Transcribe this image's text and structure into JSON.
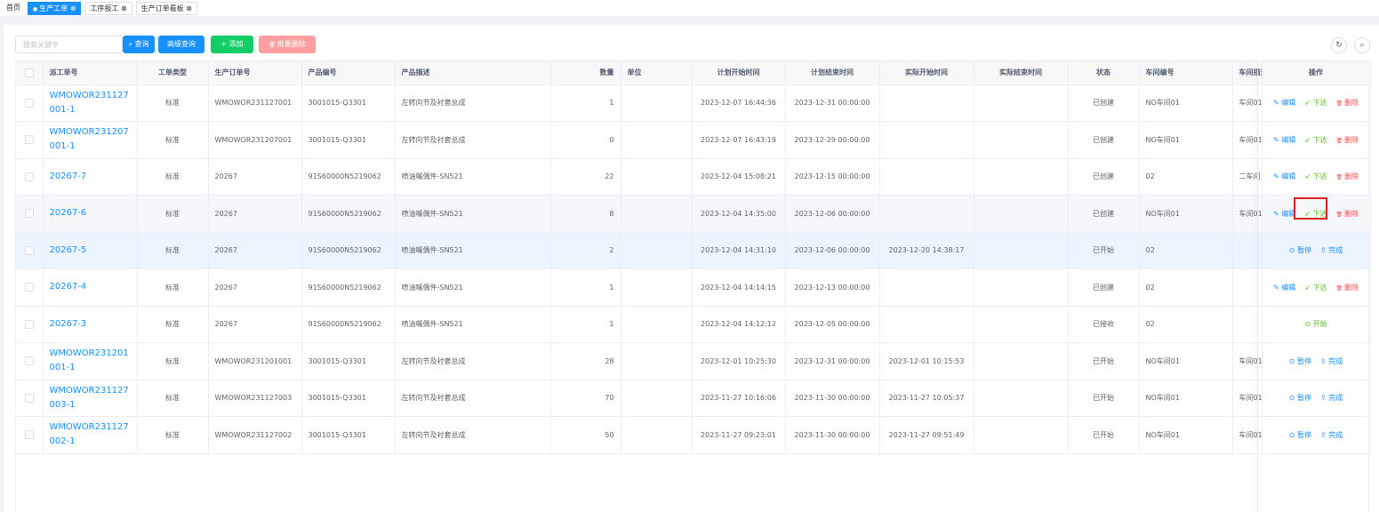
{
  "tabs": [
    {
      "label": "首页"
    },
    {
      "label": "生产工单"
    },
    {
      "label": "工序报工"
    },
    {
      "label": "生产订单看板"
    }
  ],
  "toolbar": {
    "search_placeholder": "搜索关键字",
    "buttons": [
      "查询",
      "高级查询",
      "添加",
      "批量删除"
    ]
  },
  "table": {
    "columns": [
      "派工单号",
      "工单类型",
      "生产订单号",
      "产品编号",
      "产品描述",
      "数量",
      "单位",
      "计划开始时间",
      "计划结束时间",
      "实际开始时间",
      "实际结束时间",
      "状态",
      "车间编号",
      "车间描述",
      "操作"
    ],
    "rows": [
      {
        "cells": [
          "WMOWOR231127001-1",
          "标准",
          "WMOWOR231127001",
          "3001015-Q3301",
          "左转向节及衬套总成",
          "1",
          null,
          "2023-12-07 16:44:36",
          "2023-12-31 00:00:00",
          null,
          null,
          "已创建",
          "NO车间01",
          "车间01"
        ],
        "actions": [
          "编辑",
          "下达",
          "删除"
        ]
      },
      {
        "cells": [
          "WMOWOR231207001-1",
          "标准",
          "WMOWOR231207001",
          "3001015-Q3301",
          "左转向节及衬套总成",
          "0",
          null,
          "2023-12-07 16:43:19",
          "2023-12-29 00:00:00",
          null,
          null,
          "已创建",
          "NO车间01",
          "车间01"
        ],
        "actions": [
          "编辑",
          "下达",
          "删除"
        ]
      },
      {
        "cells": [
          "20267-7",
          "标准",
          "20267",
          "91S60000N5219062",
          "喷油嘴偶件-SN521",
          "22",
          null,
          "2023-12-04 15:08:21",
          "2023-12-15 00:00:00",
          null,
          null,
          "已创建",
          "02",
          "二车间"
        ],
        "actions": [
          "编辑",
          "下达",
          "删除"
        ]
      },
      {
        "cells": [
          "20267-6",
          "标准",
          "20267",
          "91S60000N5219062",
          "喷油嘴偶件-SN521",
          "8",
          null,
          "2023-12-04 14:35:00",
          "2023-12-06 00:00:00",
          null,
          null,
          "已创建",
          "NO车间01",
          "车间01"
        ],
        "actions": [
          "编辑",
          "下达",
          "删除"
        ]
      },
      {
        "cells": [
          "20267-5",
          "标准",
          "20267",
          "91S60000N5219062",
          "喷油嘴偶件-SN521",
          "2",
          null,
          "2023-12-04 14:31:10",
          "2023-12-06 00:00:00",
          "2023-12-20 14:38:17",
          null,
          "已开始",
          "02",
          null
        ],
        "actions": [
          "暂停",
          "完成"
        ]
      },
      {
        "cells": [
          "20267-4",
          "标准",
          "20267",
          "91S60000N5219062",
          "喷油嘴偶件-SN521",
          "1",
          null,
          "2023-12-04 14:14:15",
          "2023-12-13 00:00:00",
          null,
          null,
          "已创建",
          "02",
          null
        ],
        "actions": [
          "编辑",
          "下达",
          "删除"
        ]
      },
      {
        "cells": [
          "20267-3",
          "标准",
          "20267",
          "91S60000N5219062",
          "喷油嘴偶件-SN521",
          "1",
          null,
          "2023-12-04 14:12:12",
          "2023-12-05 00:00:00",
          null,
          null,
          "已接收",
          "02",
          null
        ],
        "actions": [
          "开始"
        ]
      },
      {
        "cells": [
          "WMOWOR231201001-1",
          "标准",
          "WMOWOR231201001",
          "3001015-Q3301",
          "左转向节及衬套总成",
          "28",
          null,
          "2023-12-01 10:25:30",
          "2023-12-31 00:00:00",
          "2023-12-01 10:15:53",
          null,
          "已开始",
          "NO车间01",
          "车间01"
        ],
        "actions": [
          "暂停",
          "完成"
        ]
      },
      {
        "cells": [
          "WMOWOR231127003-1",
          "标准",
          "WMOWOR231127003",
          "3001015-Q3301",
          "左转向节及衬套总成",
          "70",
          null,
          "2023-11-27 10:16:06",
          "2023-11-30 00:00:00",
          "2023-11-27 10:05:37",
          null,
          "已开始",
          "NO车间01",
          "车间01"
        ],
        "actions": [
          "暂停",
          "完成"
        ]
      },
      {
        "cells": [
          "WMOWOR231127002-1",
          "标准",
          "WMOWOR231127002",
          "3001015-Q3301",
          "左转向节及衬套总成",
          "50",
          null,
          "2023-11-27 09:23:01",
          "2023-11-30 00:00:00",
          "2023-11-27 09:51:49",
          null,
          "已开始",
          "NO车间01",
          "车间01"
        ],
        "actions": [
          "暂停",
          "完成"
        ]
      }
    ]
  }
}
